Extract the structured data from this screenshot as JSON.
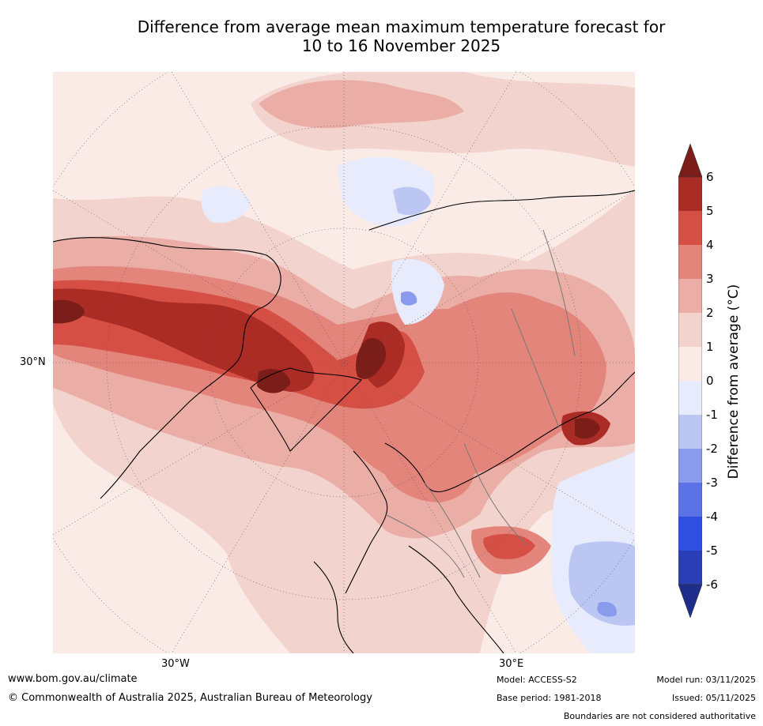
{
  "title": {
    "line1": "Difference from average mean maximum temperature forecast for",
    "line2": "10 to 16 November 2025"
  },
  "map": {
    "axis_labels": {
      "left": "30°N",
      "bottom_left": "30°W",
      "bottom_right": "30°E"
    },
    "palette": {
      "neg6": "#1f2d8a",
      "neg5": "#2a3fb6",
      "neg4": "#2e4fe0",
      "neg3": "#5a72e6",
      "neg2": "#8a9bee",
      "neg1": "#bcc6f3",
      "neg0": "#e8ebfb",
      "pos0": "#fbebe7",
      "pos1": "#f3d3cd",
      "pos2": "#ebaea7",
      "pos3": "#e4857c",
      "pos4": "#d64f45",
      "pos5": "#ab2b25",
      "pos6": "#7b1d19"
    }
  },
  "colorbar": {
    "label": "Difference from average (°C)",
    "ticks": [
      "6",
      "5",
      "4",
      "3",
      "2",
      "1",
      "0",
      "-1",
      "-2",
      "-3",
      "-4",
      "-5",
      "-6"
    ],
    "colors_top_to_bottom": [
      "#7b1d19",
      "#ab2b25",
      "#d64f45",
      "#e4857c",
      "#ebaea7",
      "#f3d3cd",
      "#fbebe7",
      "#e8ebfb",
      "#bcc6f3",
      "#8a9bee",
      "#5a72e6",
      "#2e4fe0",
      "#2a3fb6",
      "#1f2d8a"
    ]
  },
  "footer": {
    "url": "www.bom.gov.au/climate",
    "copyright": "© Commonwealth of Australia 2025, Australian Bureau of Meteorology",
    "model": "Model: ACCESS-S2",
    "base_period": "Base period: 1981-2018",
    "model_run": "Model run: 03/11/2025",
    "issued": "Issued: 05/11/2025",
    "disclaimer": "Boundaries are not considered authoritative"
  }
}
